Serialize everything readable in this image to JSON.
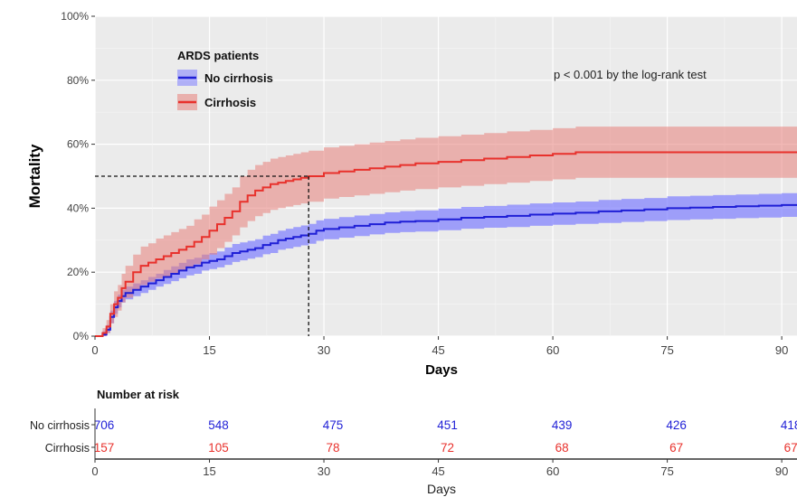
{
  "chart_data": {
    "type": "line",
    "subtype": "kaplan-meier cumulative mortality",
    "ylabel": "Mortality",
    "xlabel": "Days",
    "xlim": [
      0,
      92
    ],
    "ylim": [
      0,
      100
    ],
    "x_ticks": [
      0,
      15,
      30,
      45,
      60,
      75,
      90
    ],
    "y_ticks": [
      0,
      20,
      40,
      60,
      80,
      100
    ],
    "y_tick_labels": [
      "0%",
      "20%",
      "40%",
      "60%",
      "80%",
      "100%"
    ],
    "grid": true,
    "legend": {
      "title": "ARDS patients",
      "position": "top-left",
      "entries": [
        "No cirrhosis",
        "Cirrhosis"
      ]
    },
    "annotation": "p < 0.001 by the log-rank test",
    "median_marker": {
      "x": 28,
      "y": 50
    },
    "series": [
      {
        "name": "No cirrhosis",
        "color": "#1f1fd6",
        "band_color": "#7d7dff",
        "x": [
          0,
          1,
          1.5,
          2,
          2.5,
          3,
          3.5,
          4,
          5,
          6,
          7,
          8,
          9,
          10,
          11,
          12,
          13,
          14,
          15,
          16,
          17,
          18,
          19,
          20,
          21,
          22,
          23,
          24,
          25,
          26,
          27,
          28,
          29,
          30,
          32,
          34,
          36,
          38,
          40,
          42,
          45,
          48,
          51,
          54,
          57,
          60,
          63,
          66,
          69,
          72,
          75,
          78,
          81,
          84,
          87,
          90,
          92
        ],
        "y": [
          0,
          0.5,
          2,
          6,
          9,
          11,
          12.5,
          13.5,
          14.5,
          15.5,
          16.5,
          17.5,
          18.5,
          19.5,
          20.5,
          21.5,
          22,
          23,
          23.5,
          24,
          25,
          26,
          26.5,
          27,
          27.5,
          28.5,
          29,
          30,
          30.5,
          31,
          31.5,
          32,
          33,
          33.5,
          34,
          34.5,
          35,
          35.5,
          35.8,
          36,
          36.5,
          37,
          37.3,
          37.6,
          38,
          38.3,
          38.6,
          39,
          39.3,
          39.6,
          40,
          40.2,
          40.4,
          40.6,
          40.8,
          41,
          41
        ],
        "lower": [
          0,
          0,
          1,
          4,
          7,
          9,
          10.5,
          11.5,
          12.5,
          13.5,
          14.5,
          15.5,
          16.3,
          17.2,
          18.1,
          19,
          19.5,
          20.5,
          21,
          21.5,
          22.3,
          23.2,
          23.7,
          24.2,
          24.7,
          25.6,
          26,
          27,
          27.4,
          27.9,
          28.4,
          28.9,
          29.8,
          30.3,
          30.8,
          31.3,
          31.8,
          32.3,
          32.5,
          32.7,
          33.1,
          33.6,
          33.9,
          34.1,
          34.5,
          34.8,
          35.1,
          35.4,
          35.7,
          36,
          36.3,
          36.5,
          36.7,
          36.9,
          37.1,
          37.3,
          37.3
        ],
        "upper": [
          0,
          1.5,
          3.5,
          8,
          11,
          13,
          14.5,
          15.5,
          16.5,
          17.5,
          18.5,
          19.5,
          20.7,
          21.8,
          22.9,
          24,
          24.5,
          25.5,
          26,
          26.5,
          27.7,
          28.8,
          29.3,
          29.8,
          30.3,
          31.4,
          32,
          33,
          33.6,
          34.1,
          34.6,
          35.1,
          36.2,
          36.7,
          37.2,
          37.7,
          38.2,
          38.7,
          39.1,
          39.3,
          39.9,
          40.4,
          40.7,
          41.1,
          41.5,
          41.8,
          42.1,
          42.6,
          42.9,
          43.2,
          43.7,
          43.9,
          44.1,
          44.3,
          44.5,
          44.7,
          44.7
        ]
      },
      {
        "name": "Cirrhosis",
        "color": "#e8312c",
        "band_color": "#e8807a",
        "x": [
          0,
          1,
          1.5,
          2,
          2.5,
          3,
          3.5,
          4,
          5,
          6,
          7,
          8,
          9,
          10,
          11,
          12,
          13,
          14,
          15,
          16,
          17,
          18,
          19,
          20,
          21,
          22,
          23,
          24,
          25,
          26,
          27,
          28,
          30,
          32,
          34,
          36,
          38,
          40,
          42,
          45,
          48,
          51,
          54,
          57,
          60,
          63,
          66,
          69,
          72,
          75,
          78,
          81,
          84,
          87,
          90,
          92
        ],
        "y": [
          0,
          1,
          3,
          7,
          10,
          12,
          15,
          17,
          20,
          22,
          23,
          24,
          25,
          26,
          27,
          28,
          29.5,
          31,
          33,
          35,
          37,
          39,
          42,
          44,
          45.5,
          46.5,
          47.5,
          48,
          48.5,
          49,
          49.5,
          50,
          51,
          51.5,
          52,
          52.5,
          53,
          53.5,
          54,
          54.5,
          55,
          55.5,
          56,
          56.5,
          57,
          57.5,
          57.5,
          57.5,
          57.5,
          57.5,
          57.5,
          57.5,
          57.5,
          57.5,
          57.5,
          57.5
        ],
        "lower": [
          0,
          0,
          1,
          4,
          6,
          8,
          10.5,
          12,
          14.5,
          16,
          17,
          18,
          18.5,
          19.5,
          20.5,
          21.5,
          22.5,
          24,
          25.5,
          27.5,
          29.5,
          31.5,
          34,
          36,
          37.5,
          38.5,
          39.5,
          40,
          40.5,
          41,
          41.5,
          42,
          43,
          43.5,
          44,
          44.5,
          45,
          45.5,
          46,
          46.5,
          47,
          47.5,
          48,
          48.5,
          49,
          49.5,
          49.5,
          49.5,
          49.5,
          49.5,
          49.5,
          49.5,
          49.5,
          49.5,
          49.5,
          49.5
        ],
        "upper": [
          0,
          2.5,
          5,
          10,
          14,
          16,
          19.5,
          22,
          25.5,
          28,
          29,
          30.5,
          31.5,
          32.5,
          33.5,
          34.5,
          36.5,
          38,
          40.5,
          42.5,
          44.5,
          46.5,
          50,
          52,
          53.5,
          54.5,
          55.5,
          56,
          56.5,
          57,
          57.5,
          58,
          59,
          59.5,
          60,
          60.5,
          61,
          61.5,
          62,
          62.5,
          63,
          63.5,
          64,
          64.5,
          65,
          65.5,
          65.5,
          65.5,
          65.5,
          65.5,
          65.5,
          65.5,
          65.5,
          65.5,
          65.5,
          65.5
        ]
      }
    ],
    "risk_table": {
      "title": "Number at risk",
      "xlabel": "Days",
      "x": [
        0,
        15,
        30,
        45,
        60,
        75,
        90
      ],
      "x_tick_labels": [
        "0",
        "15",
        "30",
        "45",
        "60",
        "75",
        "90"
      ],
      "rows": [
        {
          "label": "No cirrhosis",
          "color": "#1f1fd6",
          "values": [
            "706",
            "548",
            "475",
            "451",
            "439",
            "426",
            "418"
          ]
        },
        {
          "label": "Cirrhosis",
          "color": "#e8312c",
          "values": [
            "157",
            "105",
            "78",
            "72",
            "68",
            "67",
            "67"
          ]
        }
      ]
    }
  }
}
